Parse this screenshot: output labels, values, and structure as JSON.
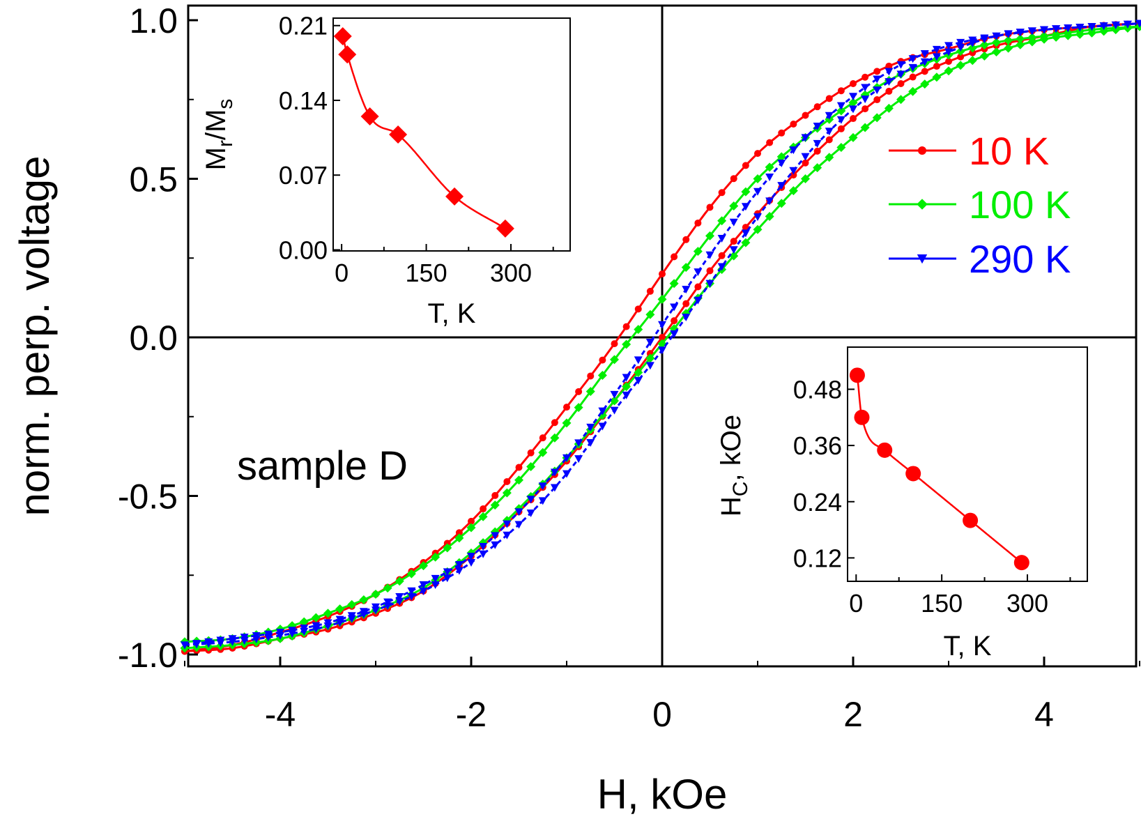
{
  "chart_data": [
    {
      "type": "line",
      "xlabel": "H, kOe",
      "ylabel": "norm. perp. voltage",
      "xlim": [
        -5,
        5
      ],
      "ylim": [
        -1.05,
        1.05
      ],
      "xticks": [
        "-4",
        "-2",
        "0",
        "2",
        "4"
      ],
      "xtick_values": [
        -4,
        -2,
        0,
        2,
        4
      ],
      "yticks": [
        "-1.0",
        "-0.5",
        "0.0",
        "0.5",
        "1.0"
      ],
      "ytick_values": [
        -1.0,
        -0.5,
        0.0,
        0.5,
        1.0
      ],
      "grid": false,
      "zero_lines": true,
      "legend_position": "right",
      "annotation": "sample D",
      "series": [
        {
          "name": "10 K",
          "color": "#ff0000",
          "marker": "circle",
          "Hc": 0.4,
          "remanence": 0.2,
          "x": [
            -5,
            -4.5,
            -4,
            -3.5,
            -3,
            -2.5,
            -2,
            -1.5,
            -1,
            -0.5,
            0,
            0.5,
            1,
            1.5,
            2,
            2.5,
            3,
            3.5,
            4,
            4.5,
            5
          ],
          "y_descending": [
            -0.99,
            -0.97,
            -0.93,
            -0.88,
            -0.81,
            -0.71,
            -0.58,
            -0.41,
            -0.22,
            -0.02,
            0.2,
            0.41,
            0.58,
            0.7,
            0.8,
            0.87,
            0.91,
            0.95,
            0.97,
            0.98,
            0.99
          ],
          "y_ascending": [
            -0.99,
            -0.98,
            -0.95,
            -0.92,
            -0.87,
            -0.8,
            -0.69,
            -0.55,
            -0.39,
            -0.2,
            0,
            0.21,
            0.39,
            0.55,
            0.69,
            0.8,
            0.87,
            0.92,
            0.95,
            0.98,
            0.99
          ]
        },
        {
          "name": "100 K",
          "color": "#00ee00",
          "marker": "diamond",
          "Hc": 0.3,
          "remanence": 0.12,
          "x": [
            -5,
            -4.5,
            -4,
            -3.5,
            -3,
            -2.5,
            -2,
            -1.5,
            -1,
            -0.5,
            0,
            0.5,
            1,
            1.5,
            2,
            2.5,
            3,
            3.5,
            4,
            4.5,
            5
          ],
          "y_descending": [
            -0.96,
            -0.95,
            -0.92,
            -0.87,
            -0.81,
            -0.72,
            -0.6,
            -0.45,
            -0.27,
            -0.07,
            0.12,
            0.32,
            0.5,
            0.63,
            0.74,
            0.83,
            0.89,
            0.93,
            0.95,
            0.97,
            0.98
          ],
          "y_ascending": [
            -0.98,
            -0.97,
            -0.95,
            -0.91,
            -0.86,
            -0.79,
            -0.68,
            -0.54,
            -0.38,
            -0.2,
            -0.02,
            0.17,
            0.34,
            0.5,
            0.63,
            0.75,
            0.84,
            0.9,
            0.94,
            0.96,
            0.98
          ]
        },
        {
          "name": "290 K",
          "color": "#0000ff",
          "marker": "triangle-down",
          "Hc": 0.1,
          "remanence": 0.04,
          "x": [
            -5,
            -4.5,
            -4,
            -3.5,
            -3,
            -2.5,
            -2,
            -1.5,
            -1,
            -0.5,
            0,
            0.5,
            1,
            1.5,
            2,
            2.5,
            3,
            3.5,
            4,
            4.5,
            5
          ],
          "y_descending": [
            -0.97,
            -0.95,
            -0.93,
            -0.9,
            -0.85,
            -0.78,
            -0.69,
            -0.55,
            -0.38,
            -0.18,
            0.04,
            0.26,
            0.46,
            0.63,
            0.76,
            0.86,
            0.92,
            0.95,
            0.97,
            0.98,
            0.99
          ],
          "y_ascending": [
            -0.97,
            -0.96,
            -0.94,
            -0.91,
            -0.86,
            -0.8,
            -0.71,
            -0.59,
            -0.43,
            -0.23,
            -0.04,
            0.17,
            0.38,
            0.57,
            0.72,
            0.83,
            0.9,
            0.95,
            0.97,
            0.98,
            0.99
          ]
        }
      ]
    },
    {
      "type": "line",
      "position": "top-left inset",
      "xlabel": "T, K",
      "ylabel_main": "M",
      "ylabel_sub1": "r",
      "ylabel_slash": "/M",
      "ylabel_sub2": "s",
      "xlim": [
        -15,
        405
      ],
      "ylim": [
        -0.001,
        0.217
      ],
      "xticks": [
        "0",
        "150",
        "300"
      ],
      "xtick_values": [
        0,
        150,
        300
      ],
      "yticks": [
        "0.00",
        "0.07",
        "0.14",
        "0.21"
      ],
      "ytick_values": [
        0.0,
        0.07,
        0.14,
        0.21
      ],
      "series": [
        {
          "color": "#ff0000",
          "marker": "diamond",
          "x": [
            2,
            10,
            50,
            100,
            200,
            290
          ],
          "y": [
            0.2,
            0.183,
            0.125,
            0.108,
            0.05,
            0.02
          ]
        }
      ]
    },
    {
      "type": "line",
      "position": "bottom-right inset",
      "xlabel": "T, K",
      "ylabel_main": "H",
      "ylabel_sub": "C",
      "ylabel_unit": ", kOe",
      "xlim": [
        -15,
        405
      ],
      "ylim": [
        0.07,
        0.57
      ],
      "xticks": [
        "0",
        "150",
        "300"
      ],
      "xtick_values": [
        0,
        150,
        300
      ],
      "yticks": [
        "0.12",
        "0.24",
        "0.36",
        "0.48"
      ],
      "ytick_values": [
        0.12,
        0.24,
        0.36,
        0.48
      ],
      "series": [
        {
          "color": "#ff0000",
          "marker": "circle",
          "x": [
            2,
            10,
            50,
            100,
            200,
            290
          ],
          "y": [
            0.51,
            0.42,
            0.35,
            0.3,
            0.2,
            0.11
          ]
        }
      ]
    }
  ]
}
